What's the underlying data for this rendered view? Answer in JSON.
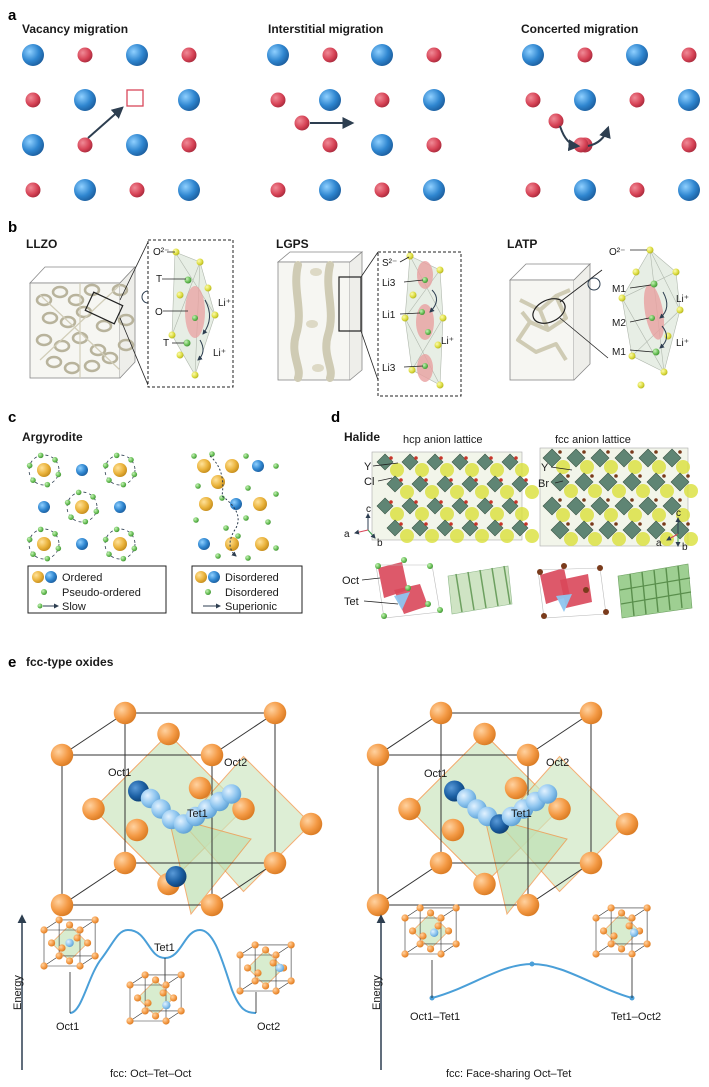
{
  "panels": {
    "a": {
      "label": "a",
      "titles": [
        "Vacancy migration",
        "Interstitial migration",
        "Concerted migration"
      ]
    },
    "b": {
      "label": "b",
      "llzo": {
        "title": "LLZO",
        "o2": "O²⁻",
        "t1": "T",
        "o": "O",
        "li1": "Li⁺",
        "t2": "T",
        "li2": "Li⁺"
      },
      "lgps": {
        "title": "LGPS",
        "s2": "S²⁻",
        "li3a": "Li3",
        "li1": "Li1",
        "liplus": "Li⁺",
        "li3b": "Li3"
      },
      "latp": {
        "title": "LATP",
        "o2": "O²⁻",
        "m1a": "M1",
        "li1": "Li⁺",
        "m2": "M2",
        "m1b": "M1",
        "li2": "Li⁺"
      }
    },
    "c": {
      "label": "c",
      "title": "Argyrodite",
      "legend_left": [
        "Ordered",
        "Pseudo-ordered",
        "Slow"
      ],
      "legend_right": [
        "Disordered",
        "Disordered",
        "Superionic"
      ]
    },
    "d": {
      "label": "d",
      "title": "Halide",
      "hcp": "hcp anion lattice",
      "fcc": "fcc anion lattice",
      "y1": "Y",
      "cl": "Cl",
      "y2": "Y",
      "br": "Br",
      "oct": "Oct",
      "tet": "Tet",
      "axis_c": "c",
      "axis_a": "a",
      "axis_b": "b"
    },
    "e": {
      "label": "e",
      "title": "fcc-type oxides",
      "left": {
        "oct1": "Oct1",
        "oct2": "Oct2",
        "tet1": "Tet1"
      },
      "right": {
        "oct1": "Oct1",
        "oct2": "Oct2",
        "tet1": "Tet1"
      },
      "energy": "Energy",
      "profile_left": {
        "tet1": "Tet1",
        "oct1": "Oct1",
        "oct2": "Oct2",
        "caption": "fcc: Oct–Tet–Oct"
      },
      "profile_right": {
        "a": "Oct1–Tet1",
        "b": "Tet1–Oct2",
        "caption": "fcc: Face-sharing Oct–Tet"
      }
    }
  },
  "colors": {
    "blue": "#3a8fd6",
    "red": "#d9475a",
    "orange": "#f4a04a",
    "green": "#cde6c0",
    "yellow": "#e5e45a",
    "line": "#2d3e50"
  }
}
